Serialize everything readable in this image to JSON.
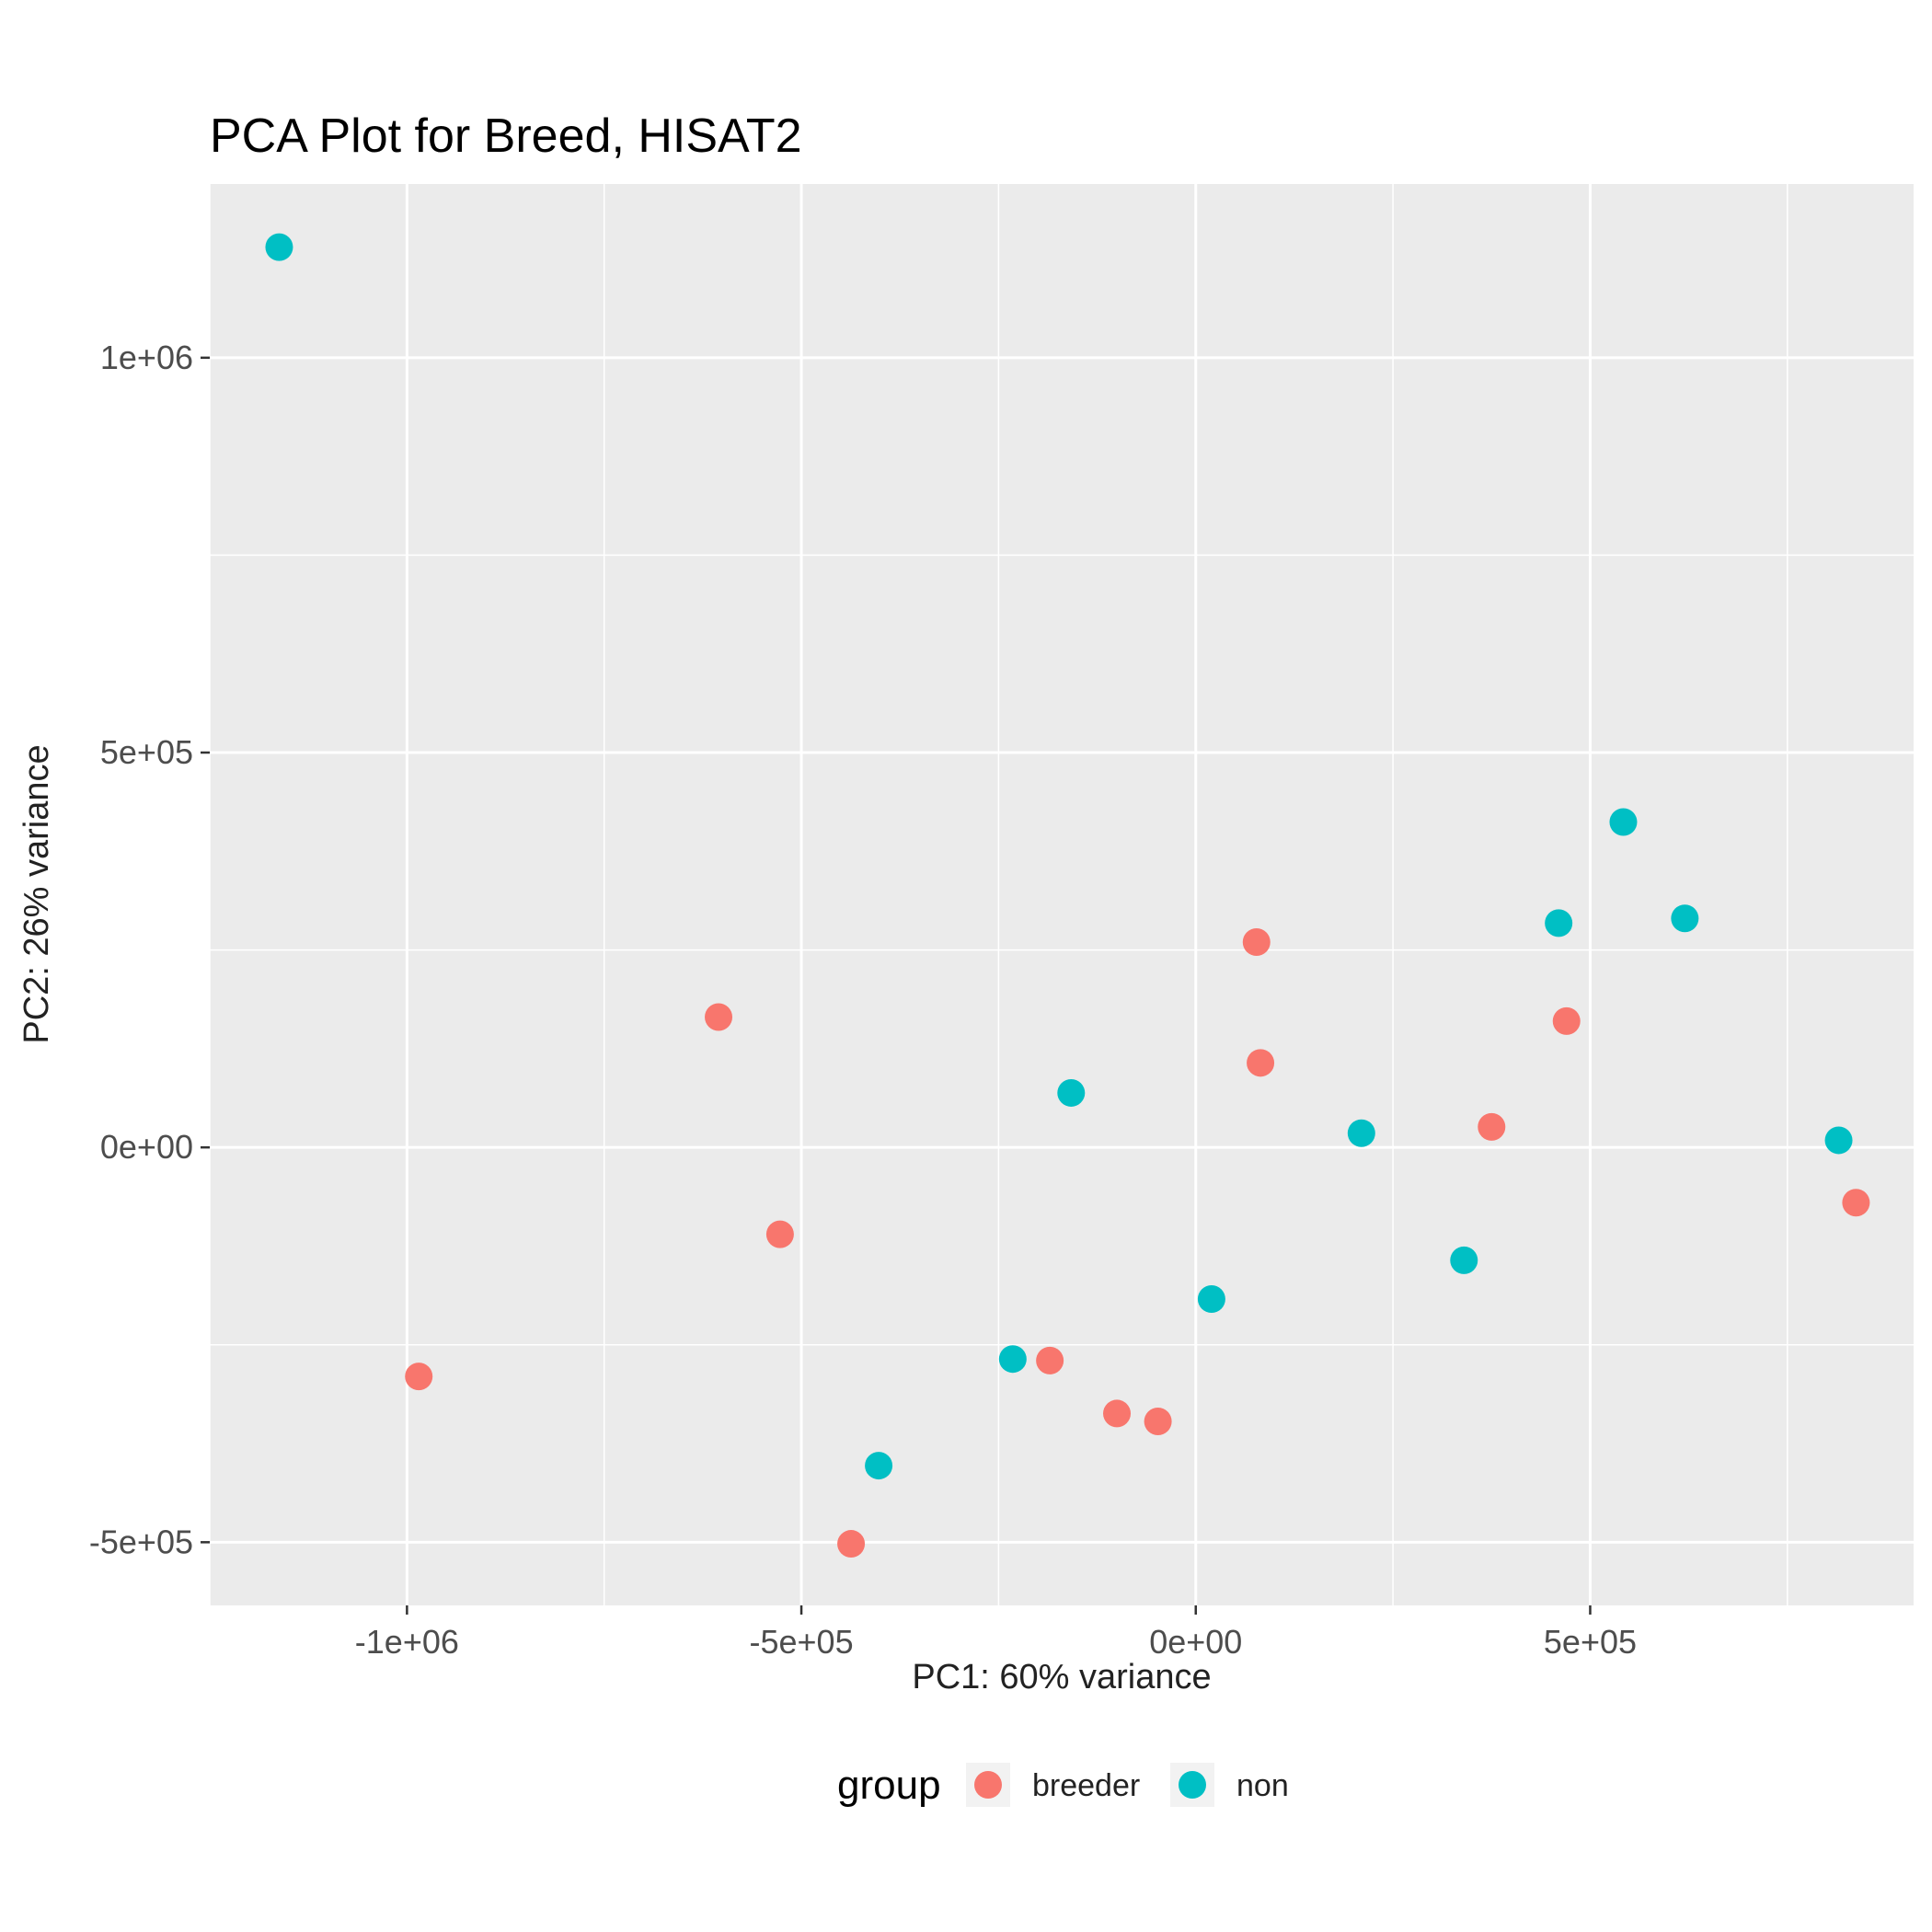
{
  "chart_data": {
    "type": "scatter",
    "title": "PCA Plot for Breed, HISAT2",
    "xlabel": "PC1: 60% variance",
    "ylabel": "PC2: 26% variance",
    "xlim": [
      -1250000,
      910000
    ],
    "ylim": [
      -580000,
      1220000
    ],
    "x_ticks": [
      {
        "value": -1000000,
        "label": "-1e+06"
      },
      {
        "value": -500000,
        "label": "-5e+05"
      },
      {
        "value": 0,
        "label": "0e+00"
      },
      {
        "value": 500000,
        "label": "5e+05"
      }
    ],
    "y_ticks": [
      {
        "value": -500000,
        "label": "-5e+05"
      },
      {
        "value": 0,
        "label": "0e+00"
      },
      {
        "value": 500000,
        "label": "5e+05"
      },
      {
        "value": 1000000,
        "label": "1e+06"
      }
    ],
    "grid": true,
    "legend": {
      "title": "group",
      "position": "bottom"
    },
    "series": [
      {
        "name": "breeder",
        "color": "#F8766D",
        "points": [
          {
            "x": -985000,
            "y": -290000
          },
          {
            "x": -605000,
            "y": 165000
          },
          {
            "x": -527000,
            "y": -110000
          },
          {
            "x": -437000,
            "y": -502000
          },
          {
            "x": -185000,
            "y": -270000
          },
          {
            "x": -100000,
            "y": -337000
          },
          {
            "x": -48000,
            "y": -347000
          },
          {
            "x": 77000,
            "y": 260000
          },
          {
            "x": 82000,
            "y": 107000
          },
          {
            "x": 375000,
            "y": 26000
          },
          {
            "x": 470000,
            "y": 160000
          },
          {
            "x": 837000,
            "y": -70000
          }
        ]
      },
      {
        "name": "non",
        "color": "#00BFC4",
        "points": [
          {
            "x": -1162000,
            "y": 1140000
          },
          {
            "x": -402000,
            "y": -403000
          },
          {
            "x": -232000,
            "y": -268000
          },
          {
            "x": -158000,
            "y": 69000
          },
          {
            "x": 20000,
            "y": -192000
          },
          {
            "x": 210000,
            "y": 18000
          },
          {
            "x": 340000,
            "y": -143000
          },
          {
            "x": 460000,
            "y": 284000
          },
          {
            "x": 542000,
            "y": 412000
          },
          {
            "x": 620000,
            "y": 290000
          },
          {
            "x": 815000,
            "y": 9000
          }
        ]
      }
    ]
  }
}
